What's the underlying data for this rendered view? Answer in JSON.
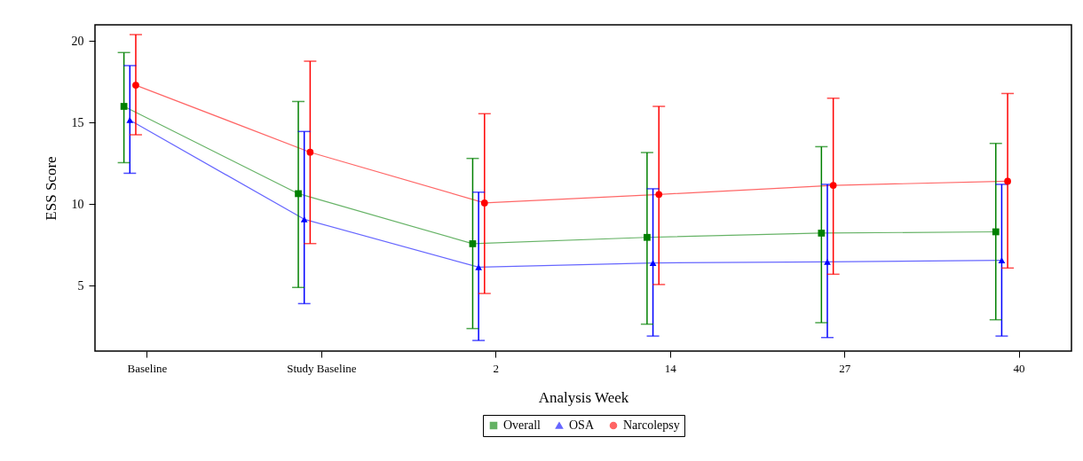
{
  "chart_data": {
    "type": "line",
    "xlabel": "Analysis Week",
    "ylabel": "ESS Score",
    "categories": [
      "Baseline",
      "Study Baseline",
      "2",
      "14",
      "27",
      "40"
    ],
    "ylim": [
      1,
      21
    ],
    "yticks": [
      5,
      10,
      15,
      20
    ],
    "legend": "bottom",
    "series": [
      {
        "name": "Overall",
        "color": "#008000",
        "marker": "square",
        "values": [
          16.0,
          10.65,
          7.58,
          7.97,
          8.23,
          8.31
        ],
        "errors": [
          [
            12.55,
            19.3
          ],
          [
            4.9,
            16.3
          ],
          [
            2.38,
            12.81
          ],
          [
            2.65,
            13.17
          ],
          [
            2.74,
            13.53
          ],
          [
            2.92,
            13.73
          ]
        ]
      },
      {
        "name": "OSA",
        "color": "#0000ff",
        "marker": "triangle",
        "values": [
          15.16,
          9.08,
          6.14,
          6.4,
          6.47,
          6.56
        ],
        "errors": [
          [
            11.9,
            18.5
          ],
          [
            3.91,
            14.46
          ],
          [
            1.65,
            10.74
          ],
          [
            1.92,
            10.95
          ],
          [
            1.83,
            11.22
          ],
          [
            1.92,
            11.22
          ]
        ]
      },
      {
        "name": "Narcolepsy",
        "color": "#ff0000",
        "marker": "circle",
        "values": [
          17.3,
          13.19,
          10.08,
          10.6,
          11.16,
          11.41
        ],
        "errors": [
          [
            14.26,
            20.4
          ],
          [
            7.59,
            18.77
          ],
          [
            4.53,
            15.55
          ],
          [
            5.08,
            16.0
          ],
          [
            5.71,
            16.5
          ],
          [
            6.09,
            16.79
          ]
        ]
      }
    ]
  }
}
